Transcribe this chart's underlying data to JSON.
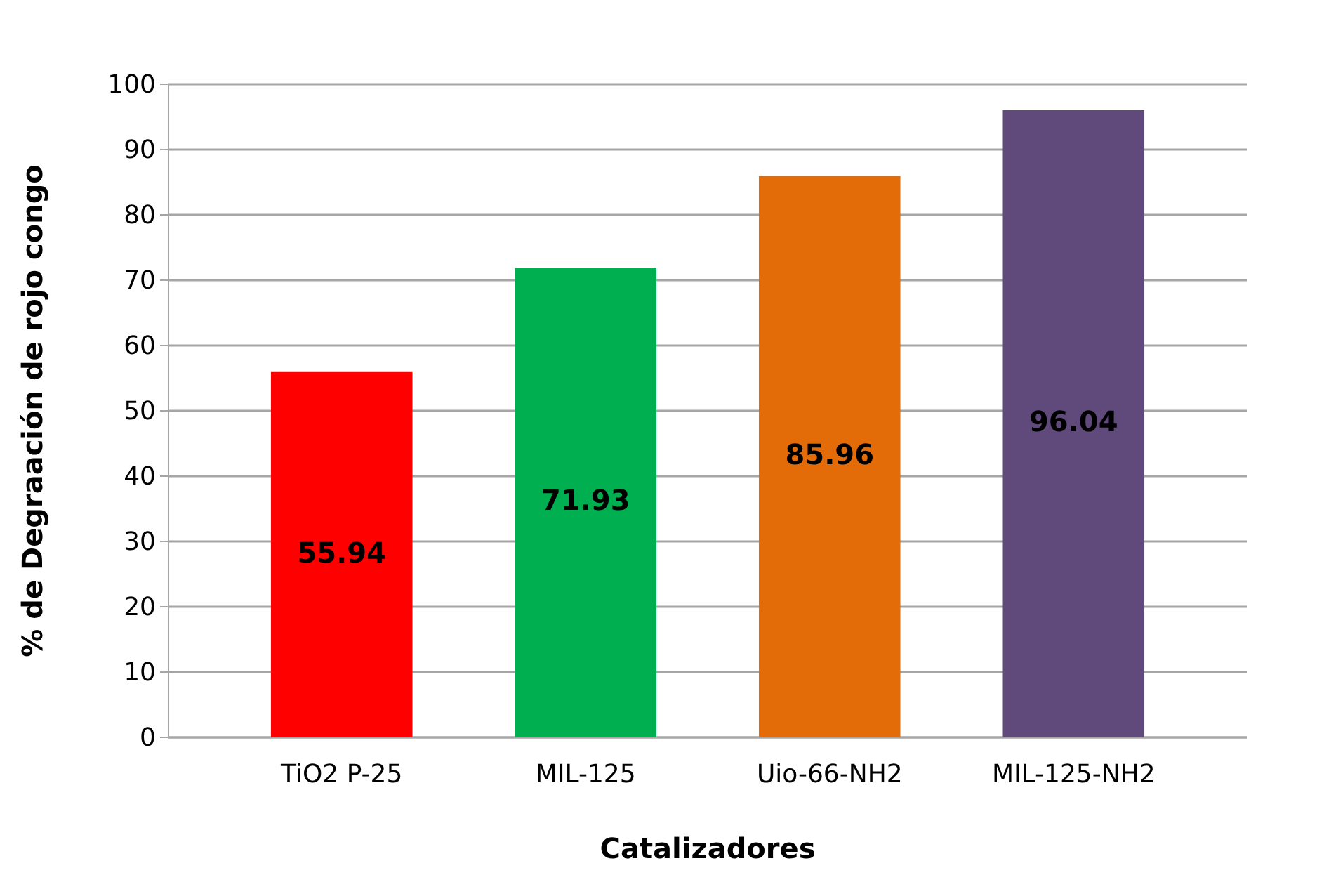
{
  "chart_data": {
    "type": "bar",
    "xlabel": "Catalizadores",
    "ylabel": "% de Degraación de rojo congo",
    "categories": [
      "TiO2 P-25",
      "MIL-125",
      "Uio-66-NH2",
      "MIL-125-NH2"
    ],
    "values": [
      55.94,
      71.93,
      85.96,
      96.04
    ],
    "colors": [
      "#ff0000",
      "#00b050",
      "#e36c09",
      "#604a7b"
    ],
    "ylim": [
      0,
      100
    ],
    "yticks": [
      0,
      10,
      20,
      30,
      40,
      50,
      60,
      70,
      80,
      90,
      100
    ],
    "grid": true,
    "data_labels": true
  }
}
